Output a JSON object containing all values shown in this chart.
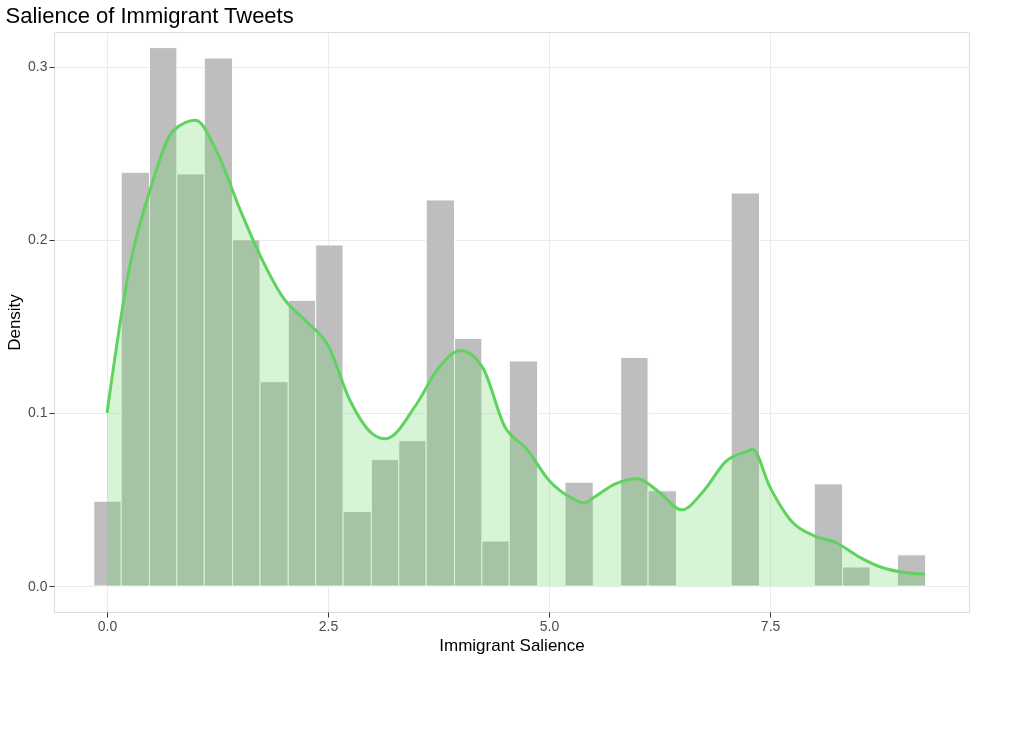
{
  "chart_data": {
    "type": "histogram",
    "title": "Salience of Immigrant Tweets",
    "xlabel": "Immigrant Salience",
    "ylabel": "Density",
    "bins": [
      -0.15,
      0.16,
      0.48,
      0.79,
      1.1,
      1.42,
      1.73,
      2.05,
      2.36,
      2.67,
      2.99,
      3.3,
      3.61,
      3.93,
      4.24,
      4.55,
      4.87,
      5.18,
      5.5,
      5.81,
      6.12,
      6.44,
      7.06,
      7.38,
      8.0,
      8.32,
      8.63,
      8.94,
      9.26
    ],
    "values": [
      0.049,
      0.239,
      0.311,
      0.238,
      0.305,
      0.2,
      0.118,
      0.165,
      0.197,
      0.043,
      0.073,
      0.084,
      0.223,
      0.143,
      0.026,
      0.13,
      0,
      0.06,
      0,
      0.132,
      0.055,
      0,
      0.227,
      0,
      0.059,
      0.011,
      0,
      0.018
    ],
    "color": "#bebebe",
    "series": [
      {
        "type": "area",
        "color": "#5fd35f",
        "x": [
          0,
          0.25,
          0.5,
          0.75,
          1.0,
          1.25,
          1.5,
          1.75,
          2.0,
          2.25,
          2.5,
          2.75,
          3.0,
          3.15,
          3.5,
          3.75,
          4.0,
          4.25,
          4.5,
          4.75,
          5.0,
          5.25,
          5.4,
          5.5,
          5.75,
          6.0,
          6.25,
          6.5,
          6.75,
          7.0,
          7.25,
          7.3,
          7.5,
          7.75,
          8.0,
          8.25,
          8.5,
          8.75,
          9.0,
          9.25
        ],
        "values": [
          0.1,
          0.183,
          0.231,
          0.263,
          0.269,
          0.25,
          0.218,
          0.189,
          0.166,
          0.153,
          0.139,
          0.107,
          0.088,
          0.085,
          0.105,
          0.126,
          0.136,
          0.126,
          0.092,
          0.079,
          0.061,
          0.051,
          0.048,
          0.051,
          0.059,
          0.062,
          0.054,
          0.044,
          0.055,
          0.072,
          0.078,
          0.079,
          0.057,
          0.037,
          0.029,
          0.025,
          0.017,
          0.011,
          0.008,
          0.007
        ]
      }
    ],
    "xlim": [
      -0.6,
      9.75
    ],
    "ylim": [
      -0.015,
      0.32
    ],
    "xticks": [
      {
        "value": 0,
        "label": "0.0"
      },
      2.5,
      {
        "value": 5,
        "label": "5.0"
      },
      7.5
    ],
    "yticks": [
      {
        "value": 0,
        "label": "0.0"
      },
      0.1,
      0.2,
      0.3
    ],
    "grid": true
  }
}
